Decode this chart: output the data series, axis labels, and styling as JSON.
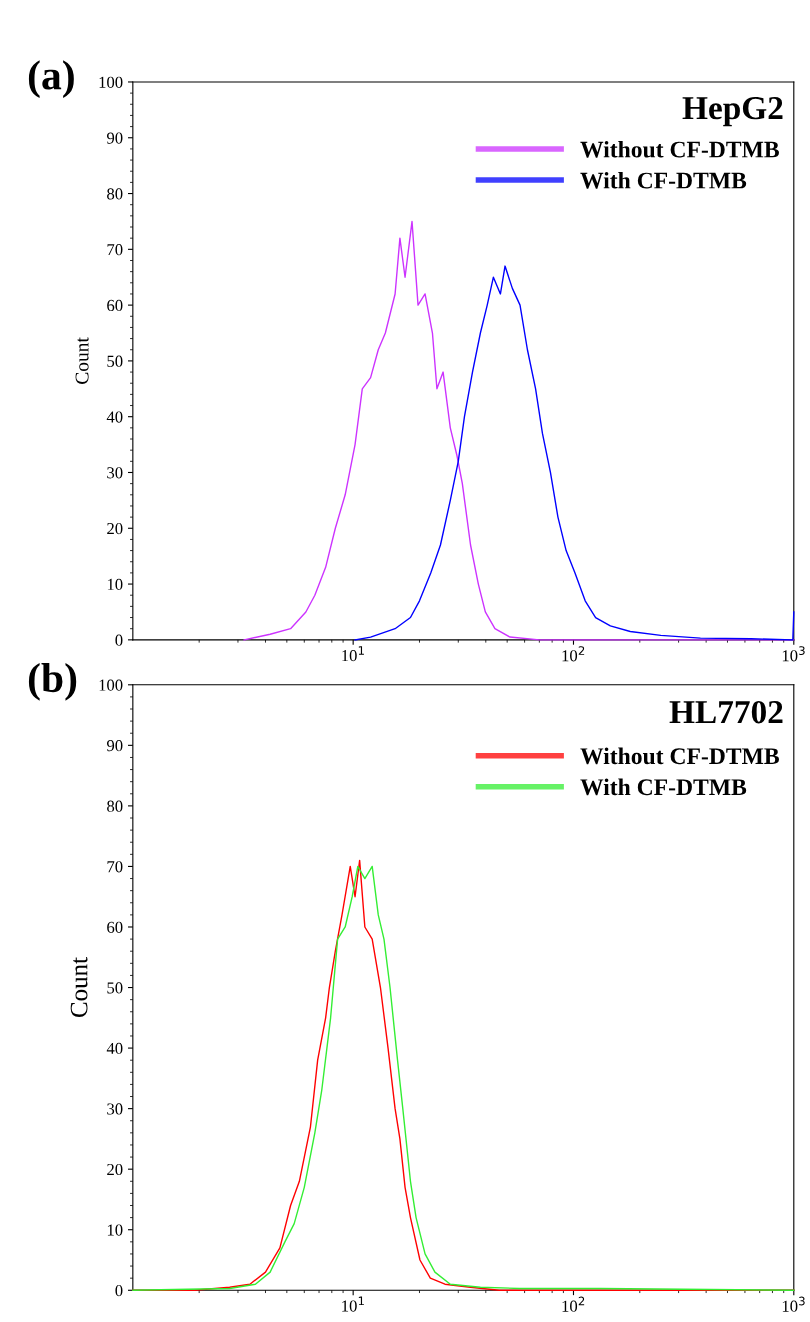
{
  "chart_data": [
    {
      "type": "line",
      "title": "HepG2",
      "ylabel": "Count",
      "annotations": [
        "(a)"
      ],
      "log": "x",
      "xlim": [
        1,
        1000
      ],
      "xticks": [
        {
          "value": 10,
          "label": "10$^{1}$"
        },
        {
          "value": 100,
          "label": "10$^{2}$"
        },
        {
          "value": 1000,
          "label": "10$^{3}$"
        }
      ],
      "ylim": [
        0,
        100
      ],
      "yticks": [
        0,
        10,
        20,
        30,
        40,
        50,
        60,
        70,
        80,
        90,
        100
      ],
      "grid": false,
      "legend": "top right",
      "marker": "none",
      "line_style": "solid",
      "series": [
        {
          "name": "Without CF-DTMB",
          "color": "#cc33ff",
          "x": [
            3.2,
            4.2,
            5.2,
            6.1,
            6.7,
            7.5,
            8.3,
            9.2,
            10.2,
            11,
            12,
            13,
            14,
            15.5,
            16.3,
            17.2,
            18.5,
            19.7,
            21.2,
            22.9,
            24,
            25.6,
            27.6,
            29.6,
            31.3,
            34.1,
            37,
            39.8,
            44,
            51.5,
            70,
            1000
          ],
          "values": [
            0,
            1,
            2,
            5,
            8,
            13,
            20,
            26,
            35,
            45,
            47,
            52,
            55,
            62,
            72,
            65,
            75,
            60,
            62,
            55,
            45,
            48,
            38,
            33,
            28,
            17,
            10,
            5,
            2,
            0.5,
            0,
            0
          ]
        },
        {
          "name": "With CF-DTMB",
          "color": "#0000ff",
          "x": [
            10.2,
            12,
            15.5,
            18.2,
            20,
            22.5,
            24.9,
            27.6,
            30,
            32,
            34.8,
            37.8,
            40.6,
            43.3,
            46.6,
            48.9,
            52.8,
            57.2,
            61.8,
            67.3,
            72.3,
            78.6,
            85,
            92.6,
            101.6,
            113,
            126,
            147,
            181,
            249,
            377,
            640,
            990,
            1000
          ],
          "values": [
            0,
            0.5,
            2,
            4,
            7,
            12,
            17,
            25,
            32,
            40,
            48,
            55,
            60,
            65,
            62,
            67,
            63,
            60,
            52,
            45,
            37,
            30,
            22,
            16,
            12,
            7,
            4,
            2.5,
            1.5,
            0.8,
            0.3,
            0.2,
            0,
            5
          ]
        }
      ]
    },
    {
      "type": "line",
      "title": "HL7702",
      "ylabel": "Count",
      "annotations": [
        "(b)"
      ],
      "log": "x",
      "xlim": [
        1,
        1000
      ],
      "xticks": [
        {
          "value": 10,
          "label": "10$^{1}$"
        },
        {
          "value": 100,
          "label": "10$^{2}$"
        },
        {
          "value": 1000,
          "label": "10$^{3}$"
        }
      ],
      "ylim": [
        0,
        100
      ],
      "yticks": [
        0,
        10,
        20,
        30,
        40,
        50,
        60,
        70,
        80,
        90,
        100
      ],
      "grid": false,
      "legend": "top right",
      "marker": "none",
      "line_style": "solid",
      "series": [
        {
          "name": "Without CF-DTMB",
          "color": "#ff0000",
          "x": [
            1,
            1.9,
            2.75,
            3.4,
            4,
            4.65,
            5.2,
            5.7,
            6.4,
            6.9,
            7.5,
            7.8,
            8.3,
            8.9,
            9.7,
            10.2,
            10.7,
            11.3,
            12.2,
            13.3,
            14.4,
            15.5,
            16.3,
            17.2,
            18.2,
            20.1,
            22.4,
            26.1,
            34,
            46,
            1000
          ],
          "values": [
            0,
            0,
            0.5,
            1,
            3,
            7,
            14,
            18,
            27,
            38,
            45,
            50,
            56,
            62,
            70,
            65,
            71,
            60,
            58,
            50,
            40,
            30,
            25,
            17,
            12,
            5,
            2,
            1,
            0.5,
            0,
            0
          ]
        },
        {
          "name": "With CF-DTMB",
          "color": "#33ee33",
          "x": [
            1,
            2.75,
            3.6,
            4.2,
            4.9,
            5.4,
            6,
            6.7,
            7.2,
            7.9,
            8.5,
            9.2,
            9.9,
            10.5,
            11.3,
            12.2,
            13,
            13.8,
            14.7,
            15.9,
            16.8,
            18.2,
            19.3,
            21.2,
            23.5,
            27.6,
            37.8,
            57,
            133,
            1000
          ],
          "values": [
            0,
            0.3,
            1,
            3,
            8,
            11,
            17,
            26,
            33,
            45,
            58,
            60,
            65,
            70,
            68,
            70,
            62,
            58,
            50,
            38,
            30,
            18,
            12,
            6,
            3,
            1,
            0.5,
            0.3,
            0.3,
            0
          ]
        }
      ]
    }
  ]
}
